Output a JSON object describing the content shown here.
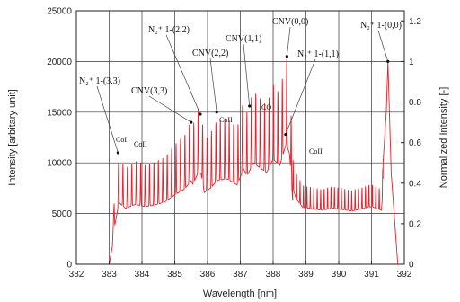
{
  "chart_data": {
    "type": "line",
    "xlabel": "Wavelength [nm]",
    "ylabel_left": "Intensity [arbitary unit]",
    "ylabel_right": "Normalized Intensity [-]",
    "xlim": [
      382,
      392
    ],
    "ylim_left": [
      0,
      25000
    ],
    "ylim_right": [
      0,
      1.25
    ],
    "grid": true,
    "x_ticks": [
      "382",
      "383",
      "384",
      "385",
      "386",
      "387",
      "388",
      "389",
      "390",
      "391",
      "392"
    ],
    "y_left_ticks": [
      "0",
      "5000",
      "10000",
      "15000",
      "20000",
      "25000"
    ],
    "y_right_ticks": [
      "0",
      "0.2",
      "0.4",
      "0.6",
      "0.8",
      "1",
      "1.2"
    ],
    "series_color": "#e8202a",
    "series": [
      {
        "x": [
          382.0,
          383.0,
          383.1,
          383.15,
          383.3,
          383.5,
          383.8,
          384.1,
          384.4,
          384.7,
          385.0,
          385.3,
          385.5,
          385.55,
          385.7,
          385.8,
          385.9,
          386.1,
          386.3,
          386.6,
          386.9,
          387.1,
          387.2,
          387.4,
          387.6,
          387.8,
          388.0,
          388.2,
          388.4,
          388.5,
          388.6,
          388.7,
          388.9,
          389.2,
          389.5,
          389.8,
          390.1,
          390.4,
          390.7,
          391.0,
          391.3,
          391.45,
          391.5,
          391.6,
          391.8,
          392.0
        ],
        "y": [
          0,
          0,
          1800,
          6000,
          10500,
          9500,
          10200,
          9800,
          10100,
          10600,
          11800,
          12800,
          14200,
          13600,
          15400,
          15500,
          12200,
          13000,
          14300,
          14500,
          13500,
          16200,
          15000,
          17200,
          16400,
          15600,
          17900,
          16800,
          20500,
          18800,
          10500,
          9000,
          7800,
          7600,
          7400,
          7700,
          7500,
          7300,
          7600,
          7900,
          7400,
          15000,
          20000,
          9000,
          0,
          0
        ]
      }
    ],
    "annotations": [
      {
        "text": "N₂⁺ 1-(3,3)",
        "x": 383.27,
        "y": 11000
      },
      {
        "text": "CNV(3,3)",
        "x": 385.5,
        "y": 14000
      },
      {
        "text": "N₂⁺ 1-(2,2)",
        "x": 385.78,
        "y": 14800
      },
      {
        "text": "CNV(2,2)",
        "x": 386.28,
        "y": 15000
      },
      {
        "text": "CNV(1,1)",
        "x": 387.28,
        "y": 15600
      },
      {
        "text": "CNV(0,0)",
        "x": 388.42,
        "y": 20500
      },
      {
        "text": "N₂⁺ 1-(1,1)",
        "x": 388.38,
        "y": 12800
      },
      {
        "text": "N₂⁺ 1-(0,0)",
        "x": 391.5,
        "y": 20000
      },
      {
        "text": "CoI",
        "x": 383.7,
        "y": 10300
      },
      {
        "text": "CoII",
        "x": 384.2,
        "y": 9800
      },
      {
        "text": "CoII",
        "x": 386.9,
        "y": 13200
      },
      {
        "text": "CO",
        "x": 388.05,
        "y": 15300
      },
      {
        "text": "CoII",
        "x": 389.1,
        "y": 10000
      }
    ]
  }
}
